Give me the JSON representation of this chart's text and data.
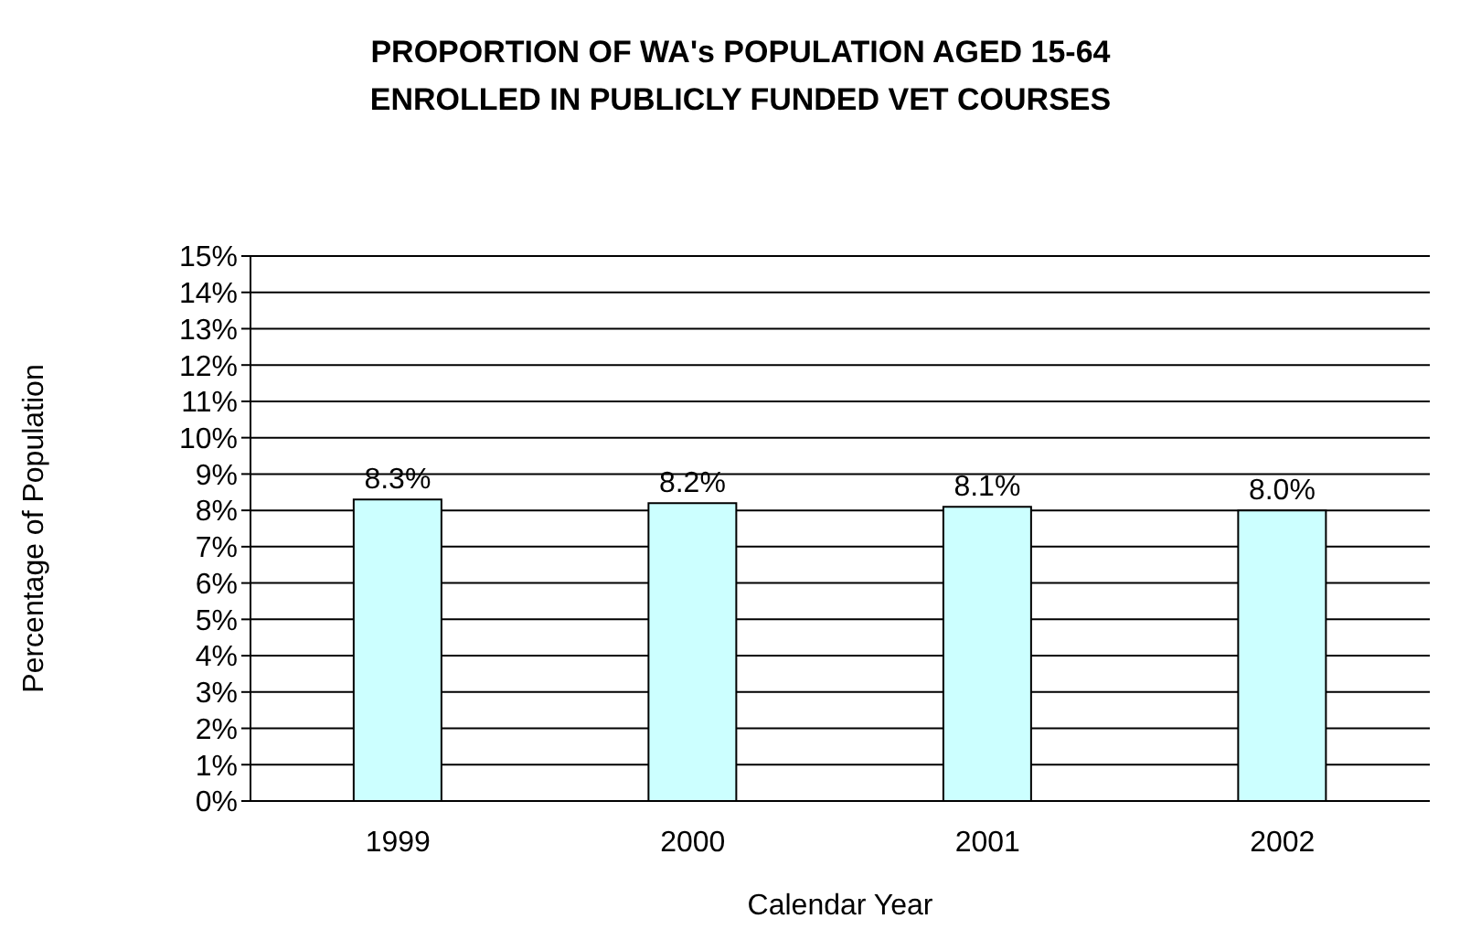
{
  "chart_data": {
    "type": "bar",
    "title": "PROPORTION OF WA's POPULATION AGED 15-64 ENROLLED IN PUBLICLY FUNDED VET COURSES",
    "xlabel": "Calendar Year",
    "ylabel": "Percentage of  Population",
    "categories": [
      "1999",
      "2000",
      "2001",
      "2002"
    ],
    "values": [
      8.3,
      8.2,
      8.1,
      8.0
    ],
    "value_labels": [
      "8.3%",
      "8.2%",
      "8.1%",
      "8.0%"
    ],
    "color": "#ccffff",
    "ylim": [
      0,
      15
    ],
    "yticks": [
      {
        "value": 0,
        "label": "0%"
      },
      {
        "value": 1,
        "label": "1%"
      },
      {
        "value": 2,
        "label": "2%"
      },
      {
        "value": 3,
        "label": "3%"
      },
      {
        "value": 4,
        "label": "4%"
      },
      {
        "value": 5,
        "label": "5%"
      },
      {
        "value": 6,
        "label": "6%"
      },
      {
        "value": 7,
        "label": "7%"
      },
      {
        "value": 8,
        "label": "8%"
      },
      {
        "value": 9,
        "label": "9%"
      },
      {
        "value": 10,
        "label": "10%"
      },
      {
        "value": 11,
        "label": "11%"
      },
      {
        "value": 12,
        "label": "12%"
      },
      {
        "value": 13,
        "label": "13%"
      },
      {
        "value": 14,
        "label": "14%"
      },
      {
        "value": 15,
        "label": "15%"
      }
    ],
    "grid": "y",
    "legend": false
  }
}
